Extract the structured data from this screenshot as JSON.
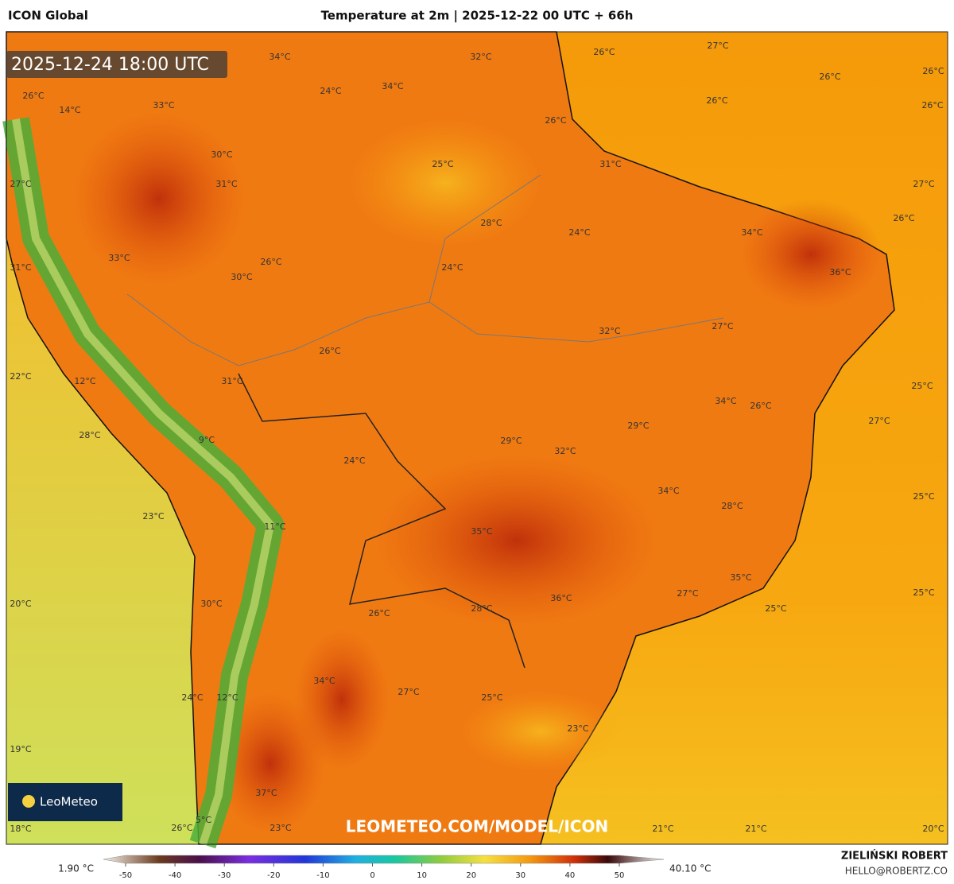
{
  "header": {
    "left": "ICON Global",
    "title": "Temperature at 2m | 2025-12-22 00 UTC + 66h"
  },
  "map": {
    "timestamp": "2025-12-24 18:00 UTC",
    "watermark": "LEOMETEO.COM/MODEL/ICON",
    "logo": "LeoMeteo",
    "labels": [
      "34°C",
      "32°C",
      "26°C",
      "27°C",
      "26°C",
      "26°C",
      "24°C",
      "34°C",
      "26°C",
      "33°C",
      "14°C",
      "26°C",
      "26°C",
      "26°C",
      "30°C",
      "25°C",
      "31°C",
      "27°C",
      "31°C",
      "27°C",
      "26°C",
      "28°C",
      "24°C",
      "34°C",
      "33°C",
      "26°C",
      "24°C",
      "31°C",
      "30°C",
      "36°C",
      "32°C",
      "27°C",
      "26°C",
      "22°C",
      "31°C",
      "12°C",
      "25°C",
      "34°C",
      "26°C",
      "27°C",
      "28°C",
      "9°C",
      "29°C",
      "29°C",
      "32°C",
      "24°C",
      "34°C",
      "25°C",
      "28°C",
      "23°C",
      "11°C",
      "35°C",
      "35°C",
      "27°C",
      "25°C",
      "36°C",
      "20°C",
      "30°C",
      "26°C",
      "28°C",
      "25°C",
      "34°C",
      "27°C",
      "24°C",
      "12°C",
      "25°C",
      "23°C",
      "19°C",
      "37°C",
      "5°C",
      "26°C",
      "23°C",
      "21°C",
      "21°C",
      "18°C",
      "20°C"
    ]
  },
  "colorbar": {
    "min_label": "1.90 °C",
    "max_label": "40.10 °C",
    "ticks": [
      -50,
      -40,
      -30,
      -20,
      -10,
      0,
      10,
      20,
      30,
      40,
      50
    ]
  },
  "footer": {
    "author": "ZIELIŃSKI ROBERT",
    "email": "HELLO@ROBERTZ.CO"
  }
}
